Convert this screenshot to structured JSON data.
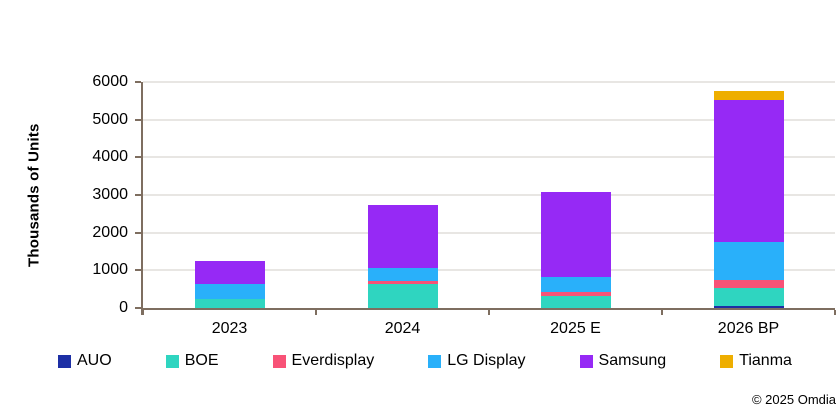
{
  "chart_data": {
    "type": "bar",
    "stacked": true,
    "title": "",
    "xlabel": "",
    "ylabel": "Thousands of Units",
    "categories": [
      "2023",
      "2024",
      "2025 E",
      "2026 BP"
    ],
    "series": [
      {
        "name": "AUO",
        "color": "#1d2fa5",
        "values": [
          0,
          0,
          0,
          50
        ]
      },
      {
        "name": "BOE",
        "color": "#2fd5c0",
        "values": [
          250,
          625,
          325,
          475
        ]
      },
      {
        "name": "Everdisplay",
        "color": "#f85277",
        "values": [
          0,
          100,
          100,
          225
        ]
      },
      {
        "name": "LG Display",
        "color": "#29b0fa",
        "values": [
          375,
          325,
          400,
          1000
        ]
      },
      {
        "name": "Samsung",
        "color": "#9629f5",
        "values": [
          625,
          1675,
          2250,
          3775
        ]
      },
      {
        "name": "Tianma",
        "color": "#eeae00",
        "values": [
          0,
          0,
          0,
          225
        ]
      }
    ],
    "totals": [
      1250,
      2725,
      3075,
      5750
    ],
    "ylim": [
      0,
      6000
    ],
    "yticks": [
      "0",
      "1000",
      "2000",
      "3000",
      "4000",
      "5000",
      "6000"
    ],
    "grid": true,
    "legend_position": "bottom"
  },
  "footer": {
    "copyright": "© 2025 Omdia"
  },
  "colors": {
    "axis": "#7e6e60",
    "gridline": "#e8e6e3",
    "text": "#000000",
    "background": "#ffffff"
  }
}
